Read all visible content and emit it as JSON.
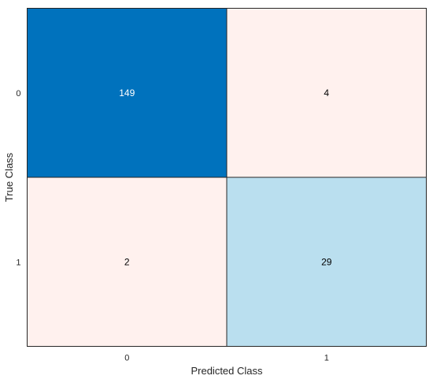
{
  "chart_data": {
    "type": "heatmap",
    "title": "",
    "xlabel": "Predicted Class",
    "ylabel": "True Class",
    "x_categories": [
      "0",
      "1"
    ],
    "y_categories": [
      "0",
      "1"
    ],
    "values": [
      [
        149,
        4
      ],
      [
        2,
        29
      ]
    ],
    "cell_colors": [
      [
        "#0072BD",
        "#FFF1EE"
      ],
      [
        "#FFF1EE",
        "#BADFEF"
      ]
    ],
    "cell_text_colors": [
      [
        "#ffffff",
        "#000000"
      ],
      [
        "#000000",
        "#000000"
      ]
    ],
    "grid": false,
    "legend": "none"
  }
}
